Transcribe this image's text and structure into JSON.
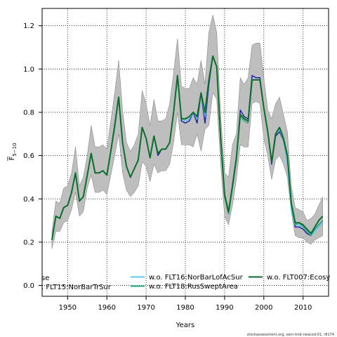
{
  "chart_data": {
    "type": "line",
    "xlabel": "Years",
    "ylabel_main": "F",
    "ylabel_sub": "5−10",
    "xlim": [
      1943.5,
      2016.5
    ],
    "ylim": [
      -0.05,
      1.28
    ],
    "x_ticks": [
      1950,
      1960,
      1970,
      1980,
      1990,
      2000,
      2010
    ],
    "y_ticks": [
      0.0,
      0.2,
      0.4,
      0.6,
      0.8,
      1.0,
      1.2
    ],
    "grid": true,
    "x": [
      1946,
      1947,
      1948,
      1949,
      1950,
      1951,
      1952,
      1953,
      1954,
      1955,
      1956,
      1957,
      1958,
      1959,
      1960,
      1961,
      1962,
      1963,
      1964,
      1965,
      1966,
      1967,
      1968,
      1969,
      1970,
      1971,
      1972,
      1973,
      1974,
      1975,
      1976,
      1977,
      1978,
      1979,
      1980,
      1981,
      1982,
      1983,
      1984,
      1985,
      1986,
      1987,
      1988,
      1989,
      1990,
      1991,
      1992,
      1993,
      1994,
      1995,
      1996,
      1997,
      1998,
      1999,
      2000,
      2001,
      2002,
      2003,
      2004,
      2005,
      2006,
      2007,
      2008,
      2009,
      2010,
      2011,
      2012,
      2013,
      2014,
      2015
    ],
    "confidence_band": {
      "lower": [
        0.17,
        0.25,
        0.25,
        0.29,
        0.3,
        0.35,
        0.43,
        0.32,
        0.34,
        0.45,
        0.51,
        0.43,
        0.43,
        0.44,
        0.42,
        0.51,
        0.6,
        0.7,
        0.52,
        0.44,
        0.41,
        0.43,
        0.46,
        0.57,
        0.55,
        0.48,
        0.56,
        0.52,
        0.53,
        0.53,
        0.56,
        0.66,
        0.8,
        0.65,
        0.65,
        0.65,
        0.64,
        0.7,
        0.62,
        0.72,
        0.74,
        0.89,
        0.86,
        0.56,
        0.32,
        0.28,
        0.37,
        0.49,
        0.65,
        0.64,
        0.64,
        0.84,
        0.85,
        0.84,
        0.68,
        0.6,
        0.49,
        0.58,
        0.6,
        0.56,
        0.5,
        0.34,
        0.23,
        0.22,
        0.22,
        0.2,
        0.19,
        0.21,
        0.22,
        0.23
      ],
      "upper": [
        0.25,
        0.39,
        0.38,
        0.45,
        0.46,
        0.52,
        0.64,
        0.46,
        0.5,
        0.6,
        0.74,
        0.64,
        0.64,
        0.65,
        0.63,
        0.76,
        0.89,
        1.04,
        0.81,
        0.66,
        0.62,
        0.65,
        0.7,
        0.9,
        0.84,
        0.74,
        0.86,
        0.76,
        0.76,
        0.77,
        0.84,
        0.98,
        1.14,
        0.92,
        0.91,
        0.91,
        0.96,
        0.93,
        1.04,
        0.93,
        1.17,
        1.25,
        1.17,
        0.79,
        0.52,
        0.5,
        0.65,
        0.7,
        0.96,
        0.93,
        0.96,
        1.11,
        1.12,
        1.12,
        0.96,
        0.81,
        0.77,
        0.84,
        0.87,
        0.79,
        0.71,
        0.46,
        0.36,
        0.35,
        0.34,
        0.3,
        0.31,
        0.33,
        0.37,
        0.41
      ]
    },
    "series": [
      {
        "name": "",
        "color": "#1a1aa0",
        "values": [
          0.21,
          0.32,
          0.31,
          0.36,
          0.37,
          0.43,
          0.52,
          0.39,
          0.41,
          0.51,
          0.61,
          0.52,
          0.52,
          0.53,
          0.51,
          0.62,
          0.73,
          0.87,
          0.66,
          0.55,
          0.5,
          0.54,
          0.58,
          0.73,
          0.68,
          0.59,
          0.69,
          0.6,
          0.63,
          0.63,
          0.66,
          0.8,
          0.97,
          0.76,
          0.75,
          0.76,
          0.8,
          0.75,
          0.89,
          0.75,
          0.93,
          1.06,
          1.01,
          0.67,
          0.41,
          0.33,
          0.45,
          0.58,
          0.81,
          0.78,
          0.77,
          0.97,
          0.96,
          0.96,
          0.82,
          0.71,
          0.56,
          0.69,
          0.71,
          0.67,
          0.59,
          0.37,
          0.27,
          0.27,
          0.26,
          0.24,
          0.23,
          0.26,
          0.28,
          0.3
        ]
      },
      {
        "name": "w.o. FLT16:NorBarLofAcSur",
        "color": "#5bc8f5",
        "values": [
          0.21,
          0.32,
          0.31,
          0.36,
          0.37,
          0.43,
          0.52,
          0.39,
          0.41,
          0.51,
          0.61,
          0.52,
          0.52,
          0.53,
          0.51,
          0.62,
          0.73,
          0.87,
          0.66,
          0.55,
          0.5,
          0.54,
          0.58,
          0.73,
          0.68,
          0.59,
          0.69,
          0.61,
          0.63,
          0.63,
          0.66,
          0.8,
          0.96,
          0.77,
          0.76,
          0.77,
          0.8,
          0.77,
          0.89,
          0.78,
          0.95,
          1.06,
          1.01,
          0.67,
          0.41,
          0.33,
          0.45,
          0.58,
          0.79,
          0.77,
          0.76,
          0.95,
          0.95,
          0.95,
          0.82,
          0.71,
          0.57,
          0.7,
          0.72,
          0.67,
          0.56,
          0.35,
          0.28,
          0.28,
          0.27,
          0.25,
          0.23,
          0.25,
          0.27,
          0.29
        ]
      },
      {
        "name": "w.o. FLT18:RusSweptArea",
        "color": "#22aa88",
        "values": [
          0.21,
          0.32,
          0.31,
          0.36,
          0.37,
          0.43,
          0.52,
          0.39,
          0.41,
          0.51,
          0.61,
          0.52,
          0.52,
          0.53,
          0.51,
          0.62,
          0.73,
          0.87,
          0.66,
          0.55,
          0.5,
          0.54,
          0.58,
          0.73,
          0.68,
          0.59,
          0.69,
          0.61,
          0.63,
          0.63,
          0.66,
          0.8,
          0.97,
          0.77,
          0.77,
          0.78,
          0.8,
          0.78,
          0.89,
          0.8,
          0.95,
          1.06,
          1.01,
          0.67,
          0.41,
          0.33,
          0.45,
          0.58,
          0.78,
          0.76,
          0.75,
          0.95,
          0.95,
          0.95,
          0.82,
          0.71,
          0.57,
          0.7,
          0.73,
          0.67,
          0.59,
          0.37,
          0.28,
          0.29,
          0.27,
          0.25,
          0.23,
          0.26,
          0.28,
          0.3
        ]
      },
      {
        "name": "w.o. FLT007:Ecosy",
        "color": "#0b6e2a",
        "values": [
          0.21,
          0.32,
          0.31,
          0.36,
          0.37,
          0.43,
          0.52,
          0.39,
          0.41,
          0.51,
          0.61,
          0.52,
          0.52,
          0.53,
          0.51,
          0.62,
          0.74,
          0.87,
          0.66,
          0.55,
          0.5,
          0.54,
          0.58,
          0.73,
          0.68,
          0.59,
          0.69,
          0.61,
          0.63,
          0.63,
          0.66,
          0.8,
          0.97,
          0.77,
          0.77,
          0.78,
          0.8,
          0.78,
          0.89,
          0.8,
          0.95,
          1.06,
          1.01,
          0.68,
          0.42,
          0.34,
          0.46,
          0.59,
          0.79,
          0.77,
          0.76,
          0.95,
          0.95,
          0.95,
          0.82,
          0.71,
          0.57,
          0.7,
          0.73,
          0.68,
          0.6,
          0.38,
          0.29,
          0.29,
          0.28,
          0.26,
          0.24,
          0.27,
          0.3,
          0.32
        ]
      }
    ],
    "legend": {
      "placement": "bottom",
      "partial_left_1": "se",
      "partial_left_2": ". FLT15:NorBarTrSur",
      "entries": [
        {
          "label": "w.o. FLT16:NorBarLofAcSur",
          "color": "#5bc8f5"
        },
        {
          "label": "w.o. FLT18:RusSweptArea",
          "color": "#22aa88"
        },
        {
          "label": "w.o. FLT007:Ecosy",
          "color": "#0b6e2a"
        }
      ]
    }
  },
  "footer": "stockassessment.org, sam-tmb-neacod-01, r8174",
  "colors": {
    "band": "#bebebe",
    "band_stroke": "#7a7a7a"
  }
}
